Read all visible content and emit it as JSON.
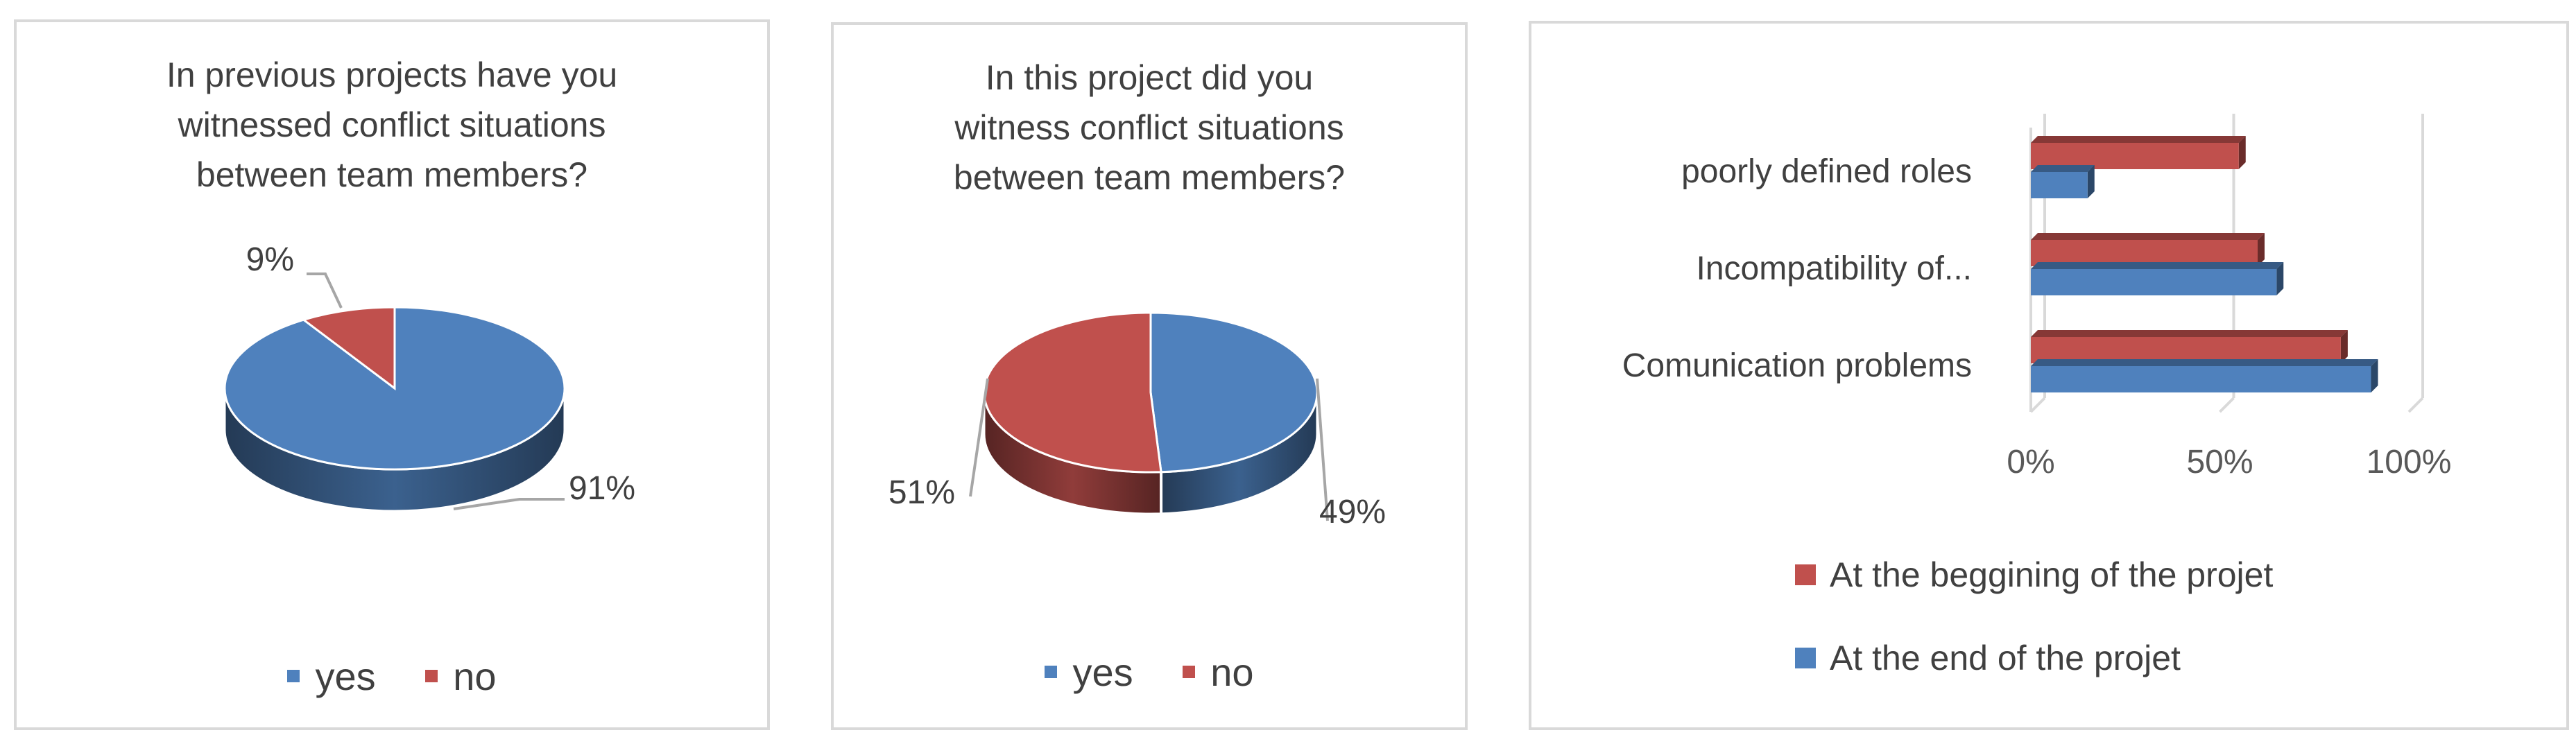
{
  "chart_data": [
    {
      "type": "pie",
      "title": "In previous projects have you witnessed conflict situations between team members?",
      "title_lines": [
        "In previous projects have you",
        "witnessed conflict situations",
        "between team members?"
      ],
      "categories": [
        "yes",
        "no"
      ],
      "values": [
        91,
        9
      ],
      "data_labels": [
        "91%",
        "9%"
      ],
      "colors": [
        "#4f81bd",
        "#c0504d"
      ],
      "legend_position": "bottom"
    },
    {
      "type": "pie",
      "title": "In this project did you witness conflict situations between team members?",
      "title_lines": [
        "In this project did you",
        "witness conflict situations",
        "between team members?"
      ],
      "categories": [
        "yes",
        "no"
      ],
      "values": [
        49,
        51
      ],
      "data_labels": [
        "49%",
        "51%"
      ],
      "colors": [
        "#4f81bd",
        "#c0504d"
      ],
      "legend_position": "bottom"
    },
    {
      "type": "bar",
      "orientation": "horizontal",
      "categories": [
        "poorly defined roles",
        "Incompatibility of...",
        "Comunication problems"
      ],
      "series": [
        {
          "name": "At the beggining of the projet",
          "values": [
            55,
            60,
            82
          ],
          "color": "#c0504d"
        },
        {
          "name": "At the end of the projet",
          "values": [
            15,
            65,
            90
          ],
          "color": "#4f81bd"
        }
      ],
      "xlim": [
        0,
        100
      ],
      "x_ticks": [
        "0%",
        "50%",
        "100%"
      ],
      "grid": true,
      "legend_position": "bottom"
    }
  ]
}
